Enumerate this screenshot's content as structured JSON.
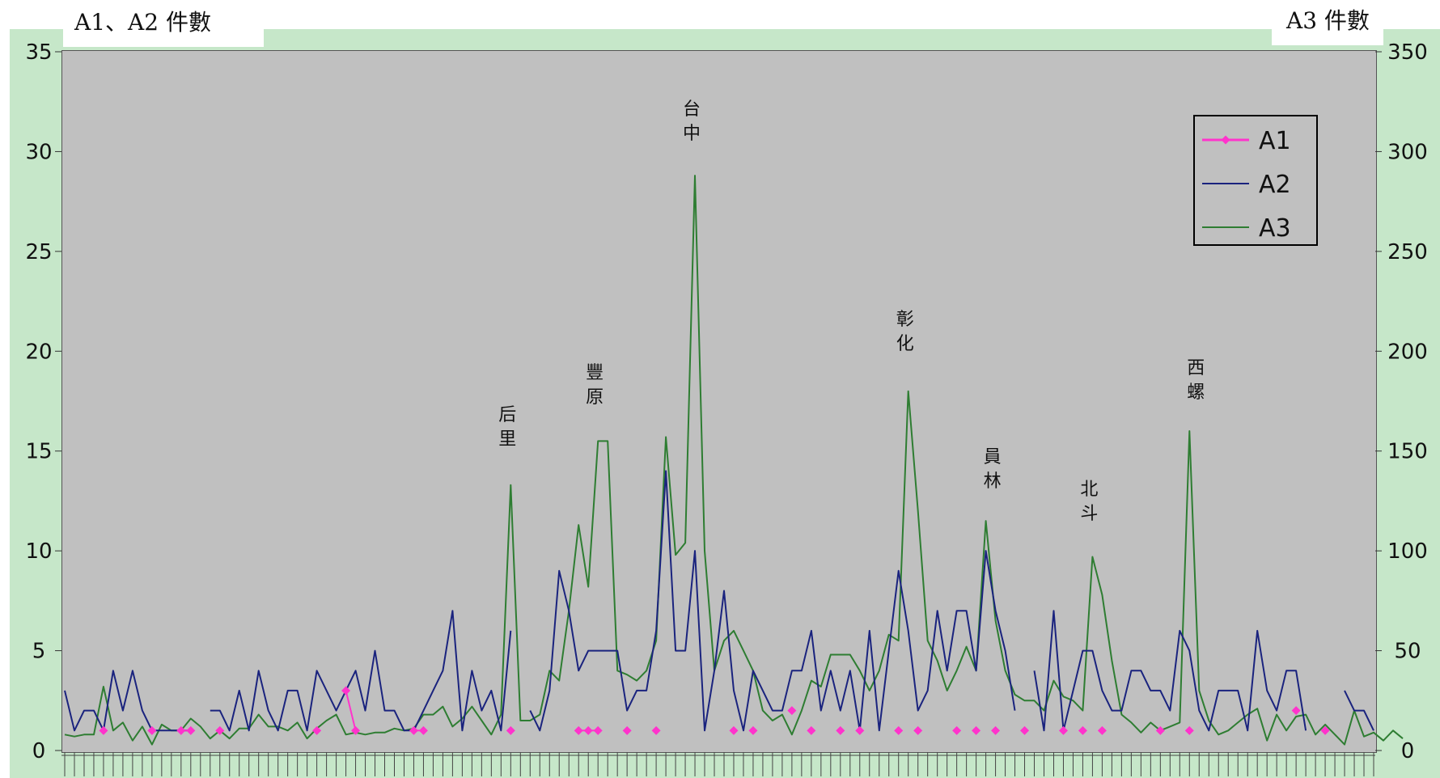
{
  "chart_data": {
    "type": "line",
    "y_left_label": "A1、A2 件數",
    "y_right_label": "A3 件數",
    "y_left_range": [
      0,
      35
    ],
    "y_right_range": [
      0,
      350
    ],
    "y_left_ticks": [
      "0",
      "5",
      "10",
      "15",
      "20",
      "25",
      "30",
      "35"
    ],
    "y_right_ticks": [
      "0",
      "50",
      "100",
      "150",
      "200",
      "250",
      "300",
      "350"
    ],
    "legend": {
      "position": "top-right",
      "entries": [
        "A1",
        "A2",
        "A3"
      ]
    },
    "annotations": [
      "后里",
      "豐原",
      "台中",
      "彰化",
      "員林",
      "北斗",
      "西螺"
    ],
    "series": [
      {
        "name": "A1",
        "axis": "left",
        "color": "#ff33cc",
        "points": [
          [
            4,
            1
          ],
          [
            9,
            1
          ],
          [
            12,
            1
          ],
          [
            13,
            1
          ],
          [
            16,
            1
          ],
          [
            26,
            1
          ],
          [
            29,
            3
          ],
          [
            30,
            1
          ],
          [
            36,
            1
          ],
          [
            37,
            1
          ],
          [
            46,
            1
          ],
          [
            53,
            1
          ],
          [
            54,
            1
          ],
          [
            55,
            1
          ],
          [
            58,
            1
          ],
          [
            61,
            1
          ],
          [
            69,
            1
          ],
          [
            71,
            1
          ],
          [
            75,
            2
          ],
          [
            77,
            1
          ],
          [
            80,
            1
          ],
          [
            82,
            1
          ],
          [
            86,
            1
          ],
          [
            88,
            1
          ],
          [
            92,
            1
          ],
          [
            94,
            1
          ],
          [
            96,
            1
          ],
          [
            99,
            1
          ],
          [
            103,
            1
          ],
          [
            105,
            1
          ],
          [
            107,
            1
          ],
          [
            113,
            1
          ],
          [
            116,
            1
          ],
          [
            127,
            2
          ],
          [
            130,
            1
          ]
        ]
      },
      {
        "name": "A2",
        "axis": "left",
        "color": "#1a237e",
        "values": [
          3,
          1,
          2,
          2,
          1,
          4,
          2,
          4,
          2,
          1,
          1,
          1,
          1,
          1,
          null,
          2,
          2,
          1,
          3,
          1,
          4,
          2,
          1,
          3,
          3,
          1,
          4,
          3,
          2,
          3,
          4,
          2,
          5,
          2,
          2,
          1,
          1,
          2,
          3,
          4,
          7,
          1,
          4,
          2,
          3,
          1,
          6,
          null,
          2,
          1,
          3,
          9,
          7,
          4,
          5,
          5,
          5,
          5,
          2,
          3,
          3,
          6,
          14,
          5,
          5,
          10,
          1,
          4,
          8,
          3,
          1,
          4,
          3,
          2,
          2,
          4,
          4,
          6,
          2,
          4,
          2,
          4,
          1,
          6,
          1,
          5,
          9,
          6,
          2,
          3,
          7,
          4,
          7,
          7,
          4,
          10,
          7,
          5,
          2,
          null,
          4,
          1,
          7,
          1,
          3,
          5,
          5,
          3,
          2,
          2,
          4,
          4,
          3,
          3,
          2,
          6,
          5,
          2,
          1,
          3,
          3,
          3,
          1,
          6,
          3,
          2,
          4,
          4,
          1,
          null,
          null,
          null,
          3,
          2,
          2,
          1
        ]
      },
      {
        "name": "A3",
        "axis": "right",
        "color": "#2e7d32",
        "values": [
          8,
          7,
          8,
          8,
          32,
          10,
          14,
          5,
          12,
          3,
          13,
          10,
          10,
          16,
          12,
          6,
          10,
          6,
          11,
          11,
          18,
          12,
          12,
          10,
          14,
          6,
          11,
          15,
          18,
          8,
          9,
          8,
          9,
          9,
          11,
          10,
          11,
          18,
          18,
          22,
          12,
          16,
          22,
          15,
          8,
          18,
          133,
          15,
          15,
          18,
          40,
          35,
          70,
          113,
          82,
          155,
          155,
          40,
          38,
          35,
          40,
          55,
          157,
          98,
          104,
          288,
          100,
          40,
          55,
          60,
          50,
          40,
          20,
          15,
          18,
          8,
          20,
          35,
          32,
          48,
          48,
          48,
          40,
          30,
          40,
          58,
          55,
          180,
          120,
          55,
          45,
          30,
          40,
          52,
          40,
          115,
          65,
          40,
          28,
          25,
          25,
          20,
          35,
          27,
          25,
          20,
          97,
          78,
          45,
          18,
          14,
          9,
          14,
          10,
          12,
          14,
          160,
          30,
          15,
          8,
          10,
          14,
          18,
          21,
          5,
          18,
          10,
          17,
          18,
          8,
          13,
          8,
          3,
          20,
          7,
          9,
          5,
          10,
          6
        ]
      }
    ]
  }
}
